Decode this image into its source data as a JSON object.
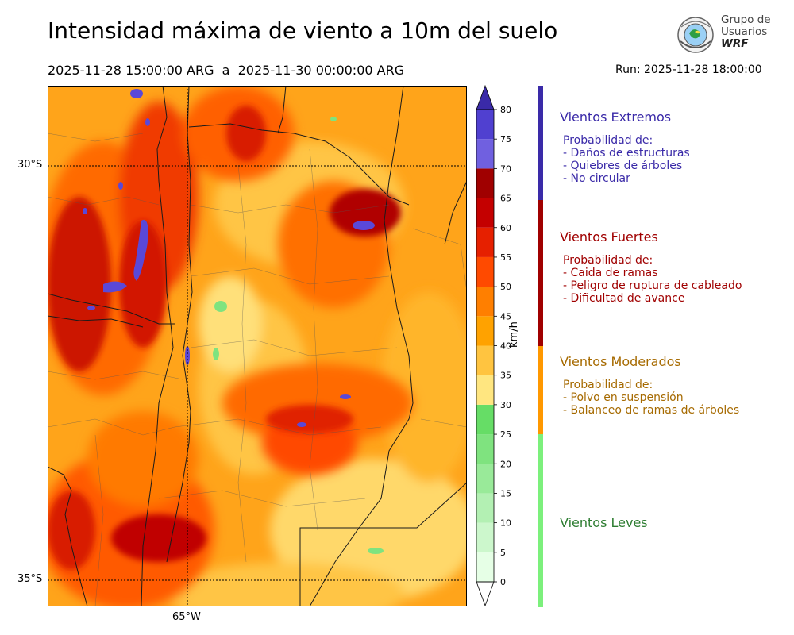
{
  "header": {
    "title": "Intensidad máxima de viento a 10m del suelo",
    "period": "2025-11-28 15:00:00 ARG  a  2025-11-30 00:00:00 ARG",
    "run": "Run: 2025-11-28 18:00:00"
  },
  "logo": {
    "line1": "Grupo de",
    "line2": "Usuarios",
    "line3": "WRF"
  },
  "map": {
    "lat_labels": [
      "30°S",
      "35°S"
    ],
    "lon_labels": [
      "65°W"
    ]
  },
  "colorbar": {
    "unit": "km/h",
    "ticks": [
      "0",
      "5",
      "10",
      "15",
      "20",
      "25",
      "30",
      "35",
      "40",
      "45",
      "50",
      "55",
      "60",
      "65",
      "70",
      "75",
      "80"
    ],
    "colors": [
      "#e6ffe6",
      "#ccf7cc",
      "#b3f0b3",
      "#99ea99",
      "#7fe37f",
      "#66dd66",
      "#ffe680",
      "#ffc440",
      "#ffa200",
      "#ff7f00",
      "#ff4a00",
      "#e62000",
      "#c40000",
      "#a00000",
      "#7060e0",
      "#5040d0",
      "#3a2aa8"
    ]
  },
  "categories": [
    {
      "title": "Vientos Extremos",
      "color": "#3a2aa8",
      "desc": [
        "Probabilidad de:",
        "- Daños de estructuras",
        "- Quiebres de árboles",
        "- No circular"
      ]
    },
    {
      "title": "Vientos Fuertes",
      "color": "#a00000",
      "desc": [
        "Probabilidad de:",
        "- Caida de ramas",
        "- Peligro de ruptura de cableado",
        "- Dificultad de avance"
      ]
    },
    {
      "title": "Vientos Moderados",
      "color": "#a66a00",
      "desc": [
        "Probabilidad de:",
        "- Polvo en suspensión",
        "- Balanceo de ramas de árboles"
      ]
    },
    {
      "title": "Vientos Leves",
      "color": "#2e7d32",
      "desc": []
    }
  ],
  "category_bar_colors": [
    "#3a2aa8",
    "#a00000",
    "#ff9800",
    "#7cf07c"
  ]
}
